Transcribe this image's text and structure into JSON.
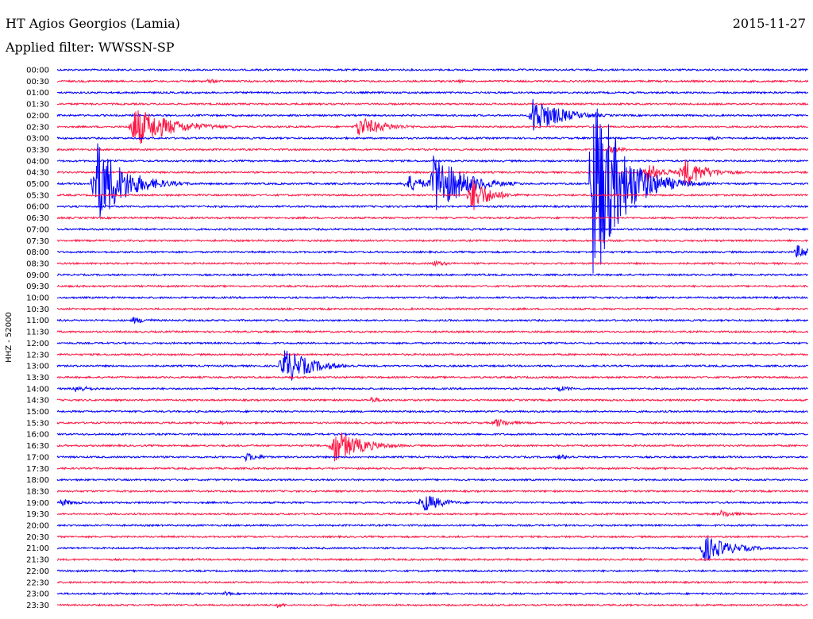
{
  "header": {
    "station": "HT Agios Georgios (Lamia)",
    "filter": "Applied filter: WWSSN-SP",
    "date": "2015-11-27"
  },
  "chart_data": {
    "type": "line",
    "title": "",
    "ylabel": "HHZ - 52000",
    "row_labels": [
      "00:00",
      "00:30",
      "01:00",
      "01:30",
      "02:00",
      "02:30",
      "03:00",
      "03:30",
      "04:00",
      "04:30",
      "05:00",
      "05:30",
      "06:00",
      "06:30",
      "07:00",
      "07:30",
      "08:00",
      "08:30",
      "09:00",
      "09:30",
      "10:00",
      "10:30",
      "11:00",
      "11:30",
      "12:00",
      "12:30",
      "13:00",
      "13:30",
      "14:00",
      "14:30",
      "15:00",
      "15:30",
      "16:00",
      "16:30",
      "17:00",
      "17:30",
      "18:00",
      "18:30",
      "19:00",
      "19:30",
      "20:00",
      "20:30",
      "21:00",
      "21:30",
      "22:00",
      "22:30",
      "23:00",
      "23:30"
    ],
    "trace_colors": [
      "#0000ff",
      "#ff1744"
    ],
    "minutes_per_row": 30,
    "events": [
      {
        "row": 1,
        "minute": 6,
        "amp": 3,
        "dur": 2
      },
      {
        "row": 1,
        "minute": 16,
        "amp": 2,
        "dur": 2
      },
      {
        "row": 5,
        "minute": 3,
        "amp": 28,
        "dur": 4
      },
      {
        "row": 5,
        "minute": 12,
        "amp": 14,
        "dur": 3
      },
      {
        "row": 4,
        "minute": 19,
        "amp": 25,
        "dur": 3
      },
      {
        "row": 7,
        "minute": 22,
        "amp": 5,
        "dur": 2
      },
      {
        "row": 10,
        "minute": 1.5,
        "amp": 60,
        "dur": 3
      },
      {
        "row": 10,
        "minute": 15,
        "amp": 45,
        "dur": 3
      },
      {
        "row": 10,
        "minute": 21.4,
        "amp": 140,
        "dur": 3
      },
      {
        "row": 10,
        "minute": 14,
        "amp": 12,
        "dur": 2
      },
      {
        "row": 11,
        "minute": 16.5,
        "amp": 25,
        "dur": 2
      },
      {
        "row": 9,
        "minute": 23.5,
        "amp": 14,
        "dur": 2
      },
      {
        "row": 9,
        "minute": 25,
        "amp": 20,
        "dur": 2.5
      },
      {
        "row": 6,
        "minute": 26,
        "amp": 3,
        "dur": 2
      },
      {
        "row": 16,
        "minute": 29.5,
        "amp": 9,
        "dur": 3
      },
      {
        "row": 17,
        "minute": 15,
        "amp": 4,
        "dur": 2
      },
      {
        "row": 22,
        "minute": 3,
        "amp": 5,
        "dur": 2
      },
      {
        "row": 26,
        "minute": 9,
        "amp": 25,
        "dur": 3
      },
      {
        "row": 28,
        "minute": 0.7,
        "amp": 5,
        "dur": 2
      },
      {
        "row": 28,
        "minute": 20,
        "amp": 4,
        "dur": 2
      },
      {
        "row": 29,
        "minute": 12.5,
        "amp": 4,
        "dur": 2
      },
      {
        "row": 31,
        "minute": 17.5,
        "amp": 6,
        "dur": 2
      },
      {
        "row": 31,
        "minute": 6.5,
        "amp": 4,
        "dur": 1
      },
      {
        "row": 33,
        "minute": 11,
        "amp": 24,
        "dur": 3
      },
      {
        "row": 34,
        "minute": 7.5,
        "amp": 6,
        "dur": 2
      },
      {
        "row": 34,
        "minute": 20,
        "amp": 4,
        "dur": 2
      },
      {
        "row": 38,
        "minute": 0.1,
        "amp": 5,
        "dur": 2
      },
      {
        "row": 38,
        "minute": 14.6,
        "amp": 14,
        "dur": 2
      },
      {
        "row": 39,
        "minute": 26.5,
        "amp": 5,
        "dur": 2
      },
      {
        "row": 42,
        "minute": 25.8,
        "amp": 18,
        "dur": 3
      },
      {
        "row": 46,
        "minute": 6.7,
        "amp": 3,
        "dur": 1
      },
      {
        "row": 47,
        "minute": 8.8,
        "amp": 4,
        "dur": 1
      }
    ]
  }
}
